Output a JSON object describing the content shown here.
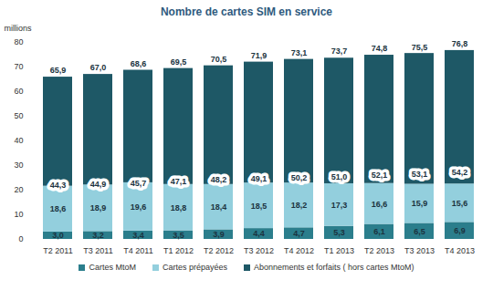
{
  "chart_data": {
    "type": "bar",
    "title": "Nombre de cartes SIM en service",
    "y_label": "millions",
    "categories": [
      "T2 2011",
      "T3 2011",
      "T4 2011",
      "T1 2012",
      "T2 2012",
      "T3 2012",
      "T4 2012",
      "T1 2013",
      "T2 2013",
      "T3 2013",
      "T4 2013"
    ],
    "series": [
      {
        "name": "Cartes MtoM",
        "color": "#2b7e8c",
        "values": [
          3.0,
          3.2,
          3.4,
          3.5,
          3.9,
          4.4,
          4.7,
          5.3,
          6.1,
          6.5,
          6.9
        ],
        "value_labels": [
          "3,0",
          "3,2",
          "3,4",
          "3,5",
          "3,9",
          "4,4",
          "4,7",
          "5,3",
          "6,1",
          "6,5",
          "6,9"
        ]
      },
      {
        "name": "Cartes prépayées",
        "color": "#93cfdd",
        "values": [
          18.6,
          18.9,
          19.6,
          18.8,
          18.4,
          18.5,
          18.2,
          17.3,
          16.6,
          15.9,
          15.6
        ],
        "value_labels": [
          "18,6",
          "18,9",
          "19,6",
          "18,8",
          "18,4",
          "18,5",
          "18,2",
          "17,3",
          "16,6",
          "15,9",
          "15,6"
        ]
      },
      {
        "name": "Abonnements et forfaits ( hors cartes MtoM)",
        "color": "#1e5866",
        "values": [
          44.3,
          44.9,
          45.7,
          47.1,
          48.2,
          49.1,
          50.2,
          51.0,
          52.1,
          53.1,
          54.2
        ],
        "value_labels": [
          "44,3",
          "44,9",
          "45,7",
          "47,1",
          "48,2",
          "49,1",
          "50,2",
          "51,0",
          "52,1",
          "53,1",
          "54,2"
        ]
      }
    ],
    "totals": [
      65.9,
      67.0,
      68.6,
      69.5,
      70.5,
      71.9,
      73.1,
      73.7,
      74.8,
      75.5,
      76.8
    ],
    "total_labels": [
      "65,9",
      "67,0",
      "68,6",
      "69,5",
      "70,5",
      "71,9",
      "73,1",
      "73,7",
      "74,8",
      "75,5",
      "76,8"
    ],
    "ylim": [
      0,
      80
    ],
    "yticks": [
      0,
      10,
      20,
      30,
      40,
      50,
      60,
      70,
      80
    ],
    "stacked": true,
    "data_labels": true,
    "grid": false,
    "legend": "bottom"
  }
}
